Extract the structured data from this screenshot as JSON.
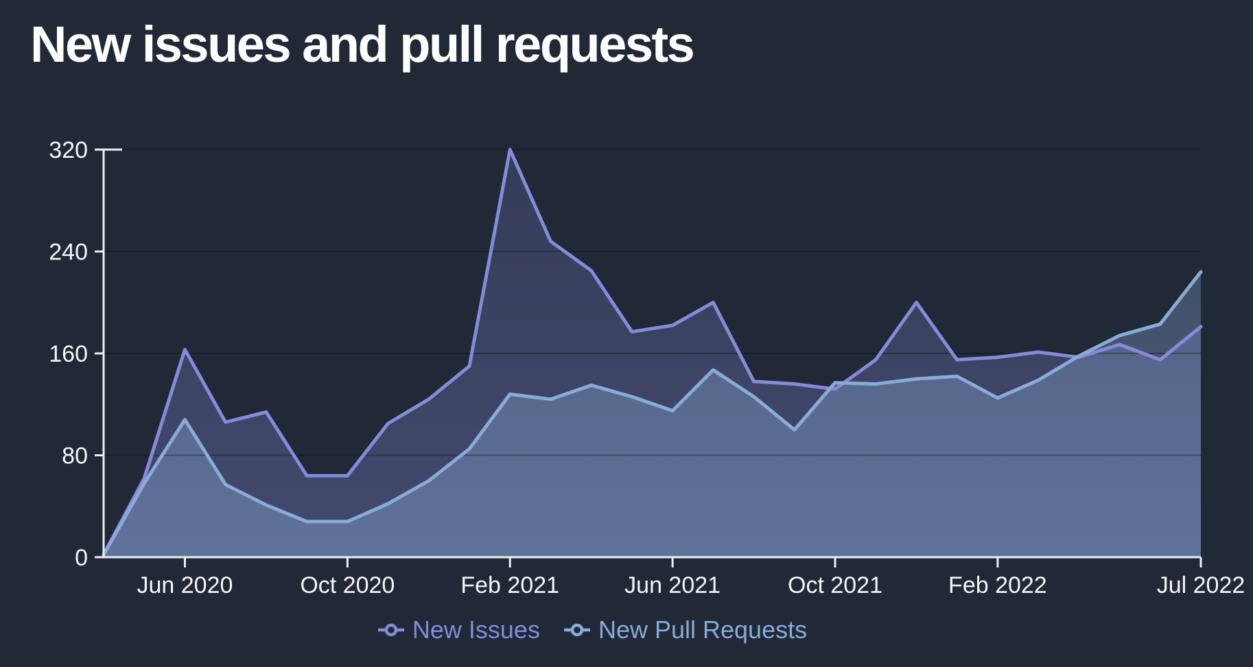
{
  "header": {
    "title": "New issues and pull requests"
  },
  "chart_data": {
    "type": "area",
    "title": "New issues and pull requests",
    "x": [
      "Apr 2020",
      "May 2020",
      "Jun 2020",
      "Jul 2020",
      "Aug 2020",
      "Sep 2020",
      "Oct 2020",
      "Nov 2020",
      "Dec 2020",
      "Jan 2021",
      "Feb 2021",
      "Mar 2021",
      "Apr 2021",
      "May 2021",
      "Jun 2021",
      "Jul 2021",
      "Aug 2021",
      "Sep 2021",
      "Oct 2021",
      "Nov 2021",
      "Dec 2021",
      "Jan 2022",
      "Feb 2022",
      "Mar 2022",
      "Apr 2022",
      "May 2022",
      "Jun 2022",
      "Jul 2022"
    ],
    "x_tick_indices": [
      2,
      6,
      10,
      14,
      18,
      22,
      27
    ],
    "x_tick_labels": [
      "Jun 2020",
      "Oct 2020",
      "Feb 2021",
      "Jun 2021",
      "Oct 2021",
      "Feb 2022",
      "Jul 2022"
    ],
    "y_ticks": [
      0,
      80,
      160,
      240,
      320
    ],
    "ylim": [
      0,
      320
    ],
    "grid": "horizontal",
    "legend_position": "bottom",
    "axis_color": "#edf0f5",
    "grid_color": "rgba(5,10,18,0.35)",
    "background_color": "#212937",
    "series": [
      {
        "name": "New Issues",
        "color": "#8789d9",
        "values": [
          2,
          62,
          163,
          106,
          114,
          64,
          64,
          105,
          124,
          150,
          320,
          248,
          225,
          177,
          182,
          200,
          138,
          136,
          132,
          155,
          200,
          155,
          157,
          161,
          157,
          167,
          155,
          181
        ]
      },
      {
        "name": "New Pull Requests",
        "color": "#88abd8",
        "values": [
          2,
          58,
          108,
          57,
          41,
          28,
          28,
          42,
          60,
          85,
          128,
          124,
          135,
          126,
          115,
          147,
          126,
          100,
          137,
          136,
          140,
          142,
          125,
          139,
          158,
          174,
          183,
          224
        ]
      }
    ]
  }
}
